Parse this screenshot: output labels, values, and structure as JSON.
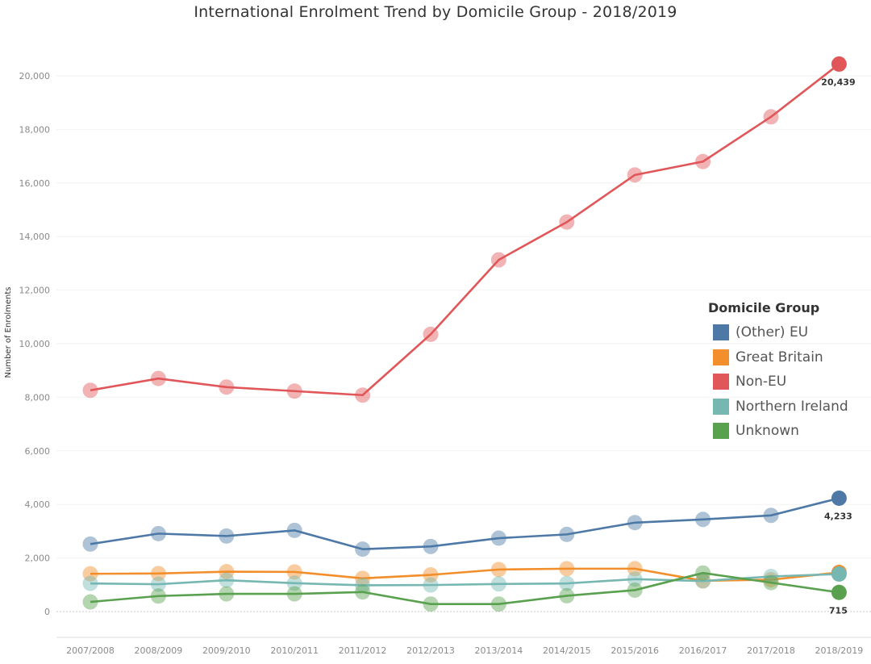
{
  "chart_data": {
    "type": "line",
    "title": "International Enrolment Trend by Domicile Group - 2018/2019",
    "xlabel": "",
    "ylabel": "Number of Enrolments",
    "ylim": [
      -1000,
      21200
    ],
    "yticks": [
      0,
      2000,
      4000,
      6000,
      8000,
      10000,
      12000,
      14000,
      16000,
      18000,
      20000
    ],
    "ytick_labels": [
      "0",
      "2,000",
      "4,000",
      "6,000",
      "8,000",
      "10,000",
      "12,000",
      "14,000",
      "16,000",
      "18,000",
      "20,000"
    ],
    "categories": [
      "2007/2008",
      "2008/2009",
      "2009/2010",
      "2010/2011",
      "2011/2012",
      "2012/2013",
      "2013/2014",
      "2014/2015",
      "2015/2016",
      "2016/2017",
      "2017/2018",
      "2018/2019"
    ],
    "legend_title": "Domicile Group",
    "legend_position": "right",
    "grid": true,
    "series": [
      {
        "name": "(Other) EU",
        "color": "#4e79a7",
        "values": [
          2520,
          2910,
          2820,
          3030,
          2330,
          2430,
          2740,
          2880,
          3320,
          3440,
          3590,
          4233
        ]
      },
      {
        "name": "Great Britain",
        "color": "#f28e2b",
        "values": [
          1410,
          1420,
          1490,
          1480,
          1240,
          1370,
          1570,
          1600,
          1600,
          1150,
          1190,
          1460
        ]
      },
      {
        "name": "Non-EU",
        "color": "#e15759",
        "values": [
          8260,
          8700,
          8380,
          8230,
          8080,
          10350,
          13130,
          14540,
          16300,
          16800,
          18470,
          20439
        ]
      },
      {
        "name": "Northern Ireland",
        "color": "#76b7b2",
        "values": [
          1050,
          1020,
          1170,
          1060,
          980,
          990,
          1030,
          1050,
          1210,
          1140,
          1310,
          1400
        ]
      },
      {
        "name": "Unknown",
        "color": "#59a14f",
        "values": [
          360,
          580,
          660,
          660,
          730,
          280,
          280,
          590,
          800,
          1440,
          1080,
          715
        ]
      }
    ],
    "data_labels": [
      "20,439",
      "4,233",
      "715"
    ]
  }
}
